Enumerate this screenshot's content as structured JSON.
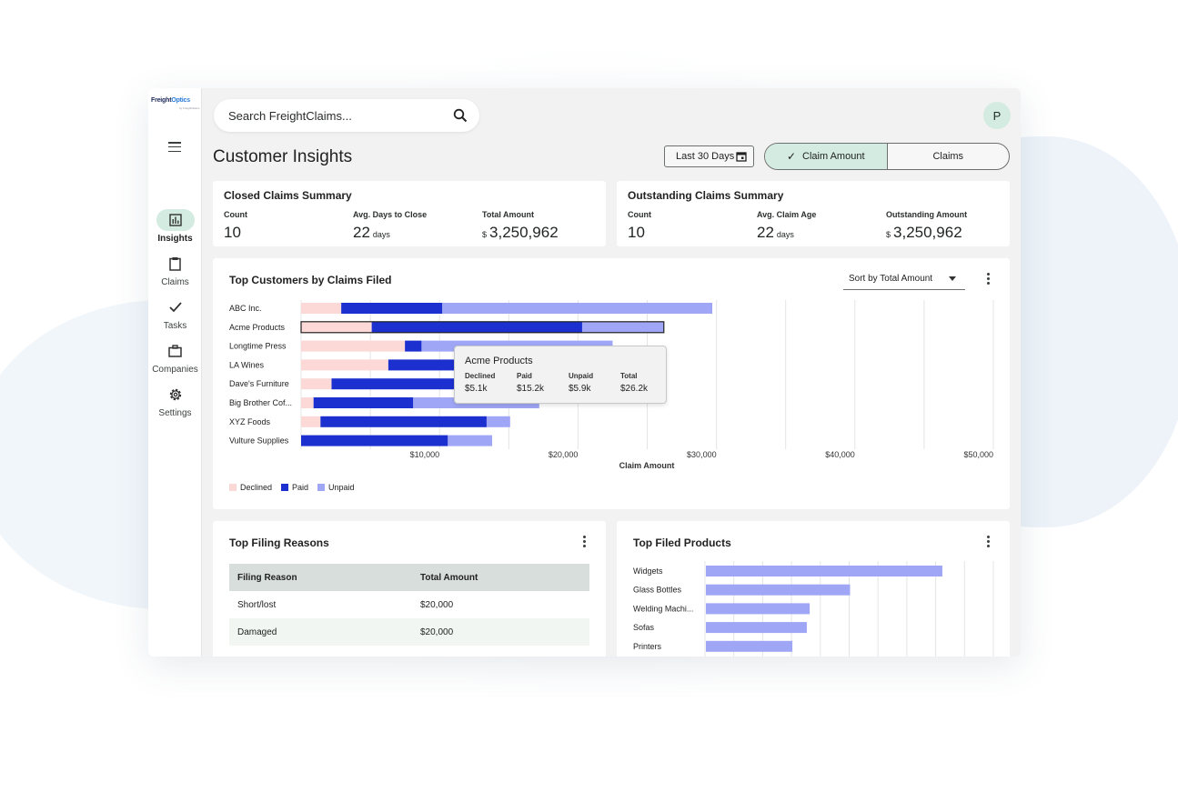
{
  "app": {
    "logo_text_a": "Freight",
    "logo_text_b": "Optics",
    "logo_sub": "by FreightClaims"
  },
  "colors": {
    "declined": "#fcd9d7",
    "paid": "#1c2fcf",
    "unpaid": "#9fa6f5",
    "accent": "#d3ebe1"
  },
  "sidebar": {
    "menu_icon": "hamburger-icon",
    "items": [
      {
        "label": "Insights",
        "icon": "bar-chart-icon",
        "active": true
      },
      {
        "label": "Claims",
        "icon": "clipboard-icon",
        "active": false
      },
      {
        "label": "Tasks",
        "icon": "check-icon",
        "active": false
      },
      {
        "label": "Companies",
        "icon": "briefcase-icon",
        "active": false
      },
      {
        "label": "Settings",
        "icon": "gear-icon",
        "active": false
      }
    ]
  },
  "header": {
    "search_placeholder": "Search FreightClaims...",
    "avatar_initial": "P"
  },
  "page": {
    "title": "Customer Insights",
    "date_range": "Last 30 Days",
    "toggle": {
      "selected": "Claim Amount",
      "other": "Claims"
    }
  },
  "closed_summary": {
    "title": "Closed Claims Summary",
    "count_label": "Count",
    "count_value": "10",
    "days_label": "Avg. Days to Close",
    "days_value": "22",
    "days_unit": "days",
    "amount_label": "Total Amount",
    "amount_currency": "$",
    "amount_value": "3,250,962"
  },
  "outstanding_summary": {
    "title": "Outstanding Claims Summary",
    "count_label": "Count",
    "count_value": "10",
    "age_label": "Avg. Claim Age",
    "age_value": "22",
    "age_unit": "days",
    "amount_label": "Outstanding Amount",
    "amount_currency": "$",
    "amount_value": "3,250,962"
  },
  "top_customers": {
    "title": "Top Customers by Claims Filed",
    "sort_label": "Sort by Total Amount",
    "legend": {
      "declined": "Declined",
      "paid": "Paid",
      "unpaid": "Unpaid"
    },
    "tooltip": {
      "title": "Acme Products",
      "declined_label": "Declined",
      "declined_value": "$5.1k",
      "paid_label": "Paid",
      "paid_value": "$15.2k",
      "unpaid_label": "Unpaid",
      "unpaid_value": "$5.9k",
      "total_label": "Total",
      "total_value": "$26.2k"
    }
  },
  "top_reasons": {
    "title": "Top Filing Reasons",
    "columns": [
      "Filing Reason",
      "Total Amount"
    ],
    "rows": [
      {
        "reason": "Short/lost",
        "amount": "$20,000"
      },
      {
        "reason": "Damaged",
        "amount": "$20,000"
      }
    ]
  },
  "top_products": {
    "title": "Top Filed Products"
  },
  "chart_data": [
    {
      "type": "bar",
      "orientation": "horizontal",
      "stacked": true,
      "title": "Top Customers by Claims Filed",
      "xlabel": "Claim Amount",
      "ylabel": "",
      "xlim": [
        0,
        50000
      ],
      "x_ticks": [
        "$10,000",
        "$20,000",
        "$30,000",
        "$40,000",
        "$50,000"
      ],
      "grid": true,
      "legend_position": "bottom-left",
      "categories": [
        "ABC Inc.",
        "Acme Products",
        "Longtime Press",
        "LA Wines",
        "Dave's Furniture",
        "Big Brother Cof...",
        "XYZ Foods",
        "Vulture Supplies"
      ],
      "series": [
        {
          "name": "Declined",
          "values": [
            2900,
            5100,
            7500,
            6300,
            2200,
            900,
            1400,
            0
          ]
        },
        {
          "name": "Paid",
          "values": [
            7300,
            15200,
            1200,
            14000,
            15800,
            7200,
            12000,
            10600
          ]
        },
        {
          "name": "Unpaid",
          "values": [
            19500,
            5900,
            13800,
            3500,
            5000,
            9100,
            1700,
            3200
          ]
        }
      ],
      "highlighted": "Acme Products"
    },
    {
      "type": "bar",
      "orientation": "horizontal",
      "title": "Top Filed Products",
      "grid": true,
      "categories": [
        "Widgets",
        "Glass Bottles",
        "Welding Machi...",
        "Sofas",
        "Printers"
      ],
      "values": [
        82,
        50,
        36,
        35,
        30
      ]
    }
  ]
}
